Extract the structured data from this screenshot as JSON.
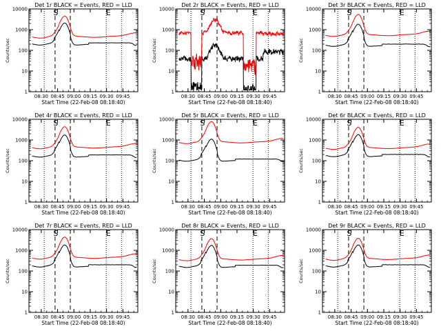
{
  "chart_data": [
    {
      "type": "line",
      "title": "Det 1r BLACK = Events, RED = LLD",
      "xlabel": "Start Time (22-Feb-08 08:18:40)",
      "ylabel": "Counts/sec",
      "yscale": "log",
      "ylim": [
        1,
        10000
      ],
      "xlim_minutes": [
        0,
        100
      ],
      "x_tick_labels": [
        "08:30",
        "08:45",
        "09:00",
        "09:15",
        "09:30",
        "09:45"
      ],
      "y_tick_labels": [
        "1",
        "10",
        "100",
        "1000",
        "10000"
      ],
      "markers": {
        "S_label": "S",
        "E_label": "E",
        "dashed_minutes": [
          24,
          38
        ],
        "dotted_minutes": [
          14,
          71,
          85
        ]
      },
      "series": [
        {
          "name": "Events",
          "color": "#000000",
          "shape": "quiet",
          "base": 230
        },
        {
          "name": "LLD",
          "color": "#ff0000",
          "shape": "quiet",
          "base": 500
        }
      ]
    },
    {
      "type": "line",
      "title": "Det 2r BLACK = Events, RED = LLD",
      "xlabel": "Start Time (22-Feb-08 08:18:40)",
      "ylabel": "Counts/sec",
      "yscale": "log",
      "ylim": [
        1,
        10000
      ],
      "xlim_minutes": [
        0,
        100
      ],
      "x_tick_labels": [
        "08:30",
        "08:45",
        "09:00",
        "09:15",
        "09:30",
        "09:45"
      ],
      "y_tick_labels": [
        "1",
        "10",
        "100",
        "1000",
        "10000"
      ],
      "markers": {
        "S_label": "S",
        "E_label": "E",
        "dashed_minutes": [
          24,
          38
        ],
        "dotted_minutes": [
          14,
          71,
          85
        ]
      },
      "series": [
        {
          "name": "Events",
          "color": "#000000",
          "shape": "noisy",
          "base": 40
        },
        {
          "name": "LLD",
          "color": "#ff0000",
          "shape": "noisy",
          "base": 700
        }
      ]
    },
    {
      "type": "line",
      "title": "Det 3r BLACK = Events, RED = LLD",
      "xlabel": "Start Time (22-Feb-08 08:18:40)",
      "ylabel": "Counts/sec",
      "yscale": "log",
      "ylim": [
        1,
        10000
      ],
      "xlim_minutes": [
        0,
        100
      ],
      "x_tick_labels": [
        "08:30",
        "08:45",
        "09:00",
        "09:15",
        "09:30",
        "09:45"
      ],
      "y_tick_labels": [
        "1",
        "10",
        "100",
        "1000",
        "10000"
      ],
      "markers": {
        "S_label": "S",
        "E_label": "E",
        "dashed_minutes": [
          24,
          38
        ],
        "dotted_minutes": [
          14,
          71,
          85
        ]
      },
      "series": [
        {
          "name": "Events",
          "color": "#000000",
          "shape": "quiet",
          "base": 200
        },
        {
          "name": "LLD",
          "color": "#ff0000",
          "shape": "quiet",
          "base": 600
        }
      ]
    },
    {
      "type": "line",
      "title": "Det 4r BLACK = Events, RED = LLD",
      "xlabel": "Start Time (22-Feb-08 08:18:40)",
      "ylabel": "Counts/sec",
      "yscale": "log",
      "ylim": [
        1,
        10000
      ],
      "xlim_minutes": [
        0,
        100
      ],
      "x_tick_labels": [
        "08:30",
        "08:45",
        "09:00",
        "09:15",
        "09:30",
        "09:45"
      ],
      "y_tick_labels": [
        "1",
        "10",
        "100",
        "1000",
        "10000"
      ],
      "markers": {
        "S_label": "S",
        "E_label": "E",
        "dashed_minutes": [
          24,
          38
        ],
        "dotted_minutes": [
          14,
          71,
          85
        ]
      },
      "series": [
        {
          "name": "Events",
          "color": "#000000",
          "shape": "quiet",
          "base": 190
        },
        {
          "name": "LLD",
          "color": "#ff0000",
          "shape": "quiet",
          "base": 480
        }
      ]
    },
    {
      "type": "line",
      "title": "Det 5r BLACK = Events, RED = LLD",
      "xlabel": "Start Time (22-Feb-08 08:18:40)",
      "ylabel": "Counts/sec",
      "yscale": "log",
      "ylim": [
        1,
        10000
      ],
      "xlim_minutes": [
        0,
        100
      ],
      "x_tick_labels": [
        "08:30",
        "08:45",
        "09:00",
        "09:15",
        "09:30",
        "09:45"
      ],
      "y_tick_labels": [
        "1",
        "10",
        "100",
        "1000",
        "10000"
      ],
      "markers": {
        "S_label": "S",
        "E_label": "E",
        "dashed_minutes": [
          24,
          38
        ],
        "dotted_minutes": [
          14,
          71,
          85
        ]
      },
      "series": [
        {
          "name": "Events",
          "color": "#000000",
          "shape": "quiet",
          "base": 120
        },
        {
          "name": "LLD",
          "color": "#ff0000",
          "shape": "quiet",
          "base": 850
        }
      ]
    },
    {
      "type": "line",
      "title": "Det 6r BLACK = Events, RED = LLD",
      "xlabel": "Start Time (22-Feb-08 08:18:40)",
      "ylabel": "Counts/sec",
      "yscale": "log",
      "ylim": [
        1,
        10000
      ],
      "xlim_minutes": [
        0,
        100
      ],
      "x_tick_labels": [
        "08:30",
        "08:45",
        "09:00",
        "09:15",
        "09:30",
        "09:45"
      ],
      "y_tick_labels": [
        "1",
        "10",
        "100",
        "1000",
        "10000"
      ],
      "markers": {
        "S_label": "S",
        "E_label": "E",
        "dashed_minutes": [
          24,
          38
        ],
        "dotted_minutes": [
          14,
          71,
          85
        ]
      },
      "series": [
        {
          "name": "Events",
          "color": "#000000",
          "shape": "quiet",
          "base": 200
        },
        {
          "name": "LLD",
          "color": "#ff0000",
          "shape": "quiet",
          "base": 450
        }
      ]
    },
    {
      "type": "line",
      "title": "Det 7r BLACK = Events, RED = LLD",
      "xlabel": "Start Time (22-Feb-08 08:18:40)",
      "ylabel": "Counts/sec",
      "yscale": "log",
      "ylim": [
        1,
        10000
      ],
      "xlim_minutes": [
        0,
        100
      ],
      "x_tick_labels": [
        "08:30",
        "08:45",
        "09:00",
        "09:15",
        "09:30",
        "09:45"
      ],
      "y_tick_labels": [
        "1",
        "10",
        "100",
        "1000",
        "10000"
      ],
      "markers": {
        "S_label": "S",
        "E_label": "E",
        "dashed_minutes": [
          24,
          38
        ],
        "dotted_minutes": [
          14,
          71,
          85
        ]
      },
      "series": [
        {
          "name": "Events",
          "color": "#000000",
          "shape": "quiet",
          "base": 200
        },
        {
          "name": "LLD",
          "color": "#ff0000",
          "shape": "quiet",
          "base": 480
        }
      ]
    },
    {
      "type": "line",
      "title": "Det 8r BLACK = Events, RED = LLD",
      "xlabel": "Start Time (22-Feb-08 08:18:40)",
      "ylabel": "Counts/sec",
      "yscale": "log",
      "ylim": [
        1,
        10000
      ],
      "xlim_minutes": [
        0,
        100
      ],
      "x_tick_labels": [
        "08:30",
        "08:45",
        "09:00",
        "09:15",
        "09:30",
        "09:45"
      ],
      "y_tick_labels": [
        "1",
        "10",
        "100",
        "1000",
        "10000"
      ],
      "markers": {
        "S_label": "S",
        "E_label": "E",
        "dashed_minutes": [
          24,
          38
        ],
        "dotted_minutes": [
          14,
          71,
          85
        ]
      },
      "series": [
        {
          "name": "Events",
          "color": "#000000",
          "shape": "quiet",
          "base": 190
        },
        {
          "name": "LLD",
          "color": "#ff0000",
          "shape": "quiet",
          "base": 400
        }
      ]
    },
    {
      "type": "line",
      "title": "Det 9r BLACK = Events, RED = LLD",
      "xlabel": "Start Time (22-Feb-08 08:18:40)",
      "ylabel": "Counts/sec",
      "yscale": "log",
      "ylim": [
        1,
        10000
      ],
      "xlim_minutes": [
        0,
        100
      ],
      "x_tick_labels": [
        "08:30",
        "08:45",
        "09:00",
        "09:15",
        "09:30",
        "09:45"
      ],
      "y_tick_labels": [
        "1",
        "10",
        "100",
        "1000",
        "10000"
      ],
      "markers": {
        "S_label": "S",
        "E_label": "E",
        "dashed_minutes": [
          24,
          38
        ],
        "dotted_minutes": [
          14,
          71,
          85
        ]
      },
      "series": [
        {
          "name": "Events",
          "color": "#000000",
          "shape": "quiet",
          "base": 200
        },
        {
          "name": "LLD",
          "color": "#ff0000",
          "shape": "quiet",
          "base": 420
        }
      ]
    }
  ]
}
